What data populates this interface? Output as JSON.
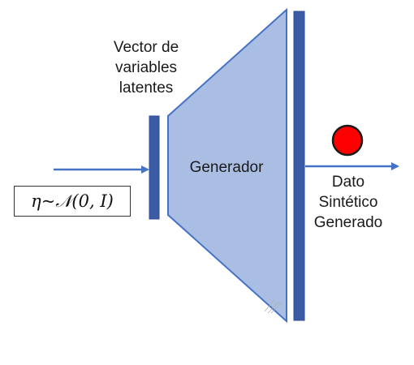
{
  "input": {
    "formula": "η~𝒩(0, I)"
  },
  "latent_vector": {
    "label_lines": [
      "Vector de",
      "variables",
      "latentes"
    ]
  },
  "generator": {
    "label": "Generador"
  },
  "output": {
    "label_lines": [
      "Dato",
      "Sintético",
      "Generado"
    ]
  },
  "colors": {
    "bar_fill": "#3b5ba5",
    "trapezoid_fill": "#aabee4",
    "arrow": "#4472c4",
    "output_dot": "#ff0000"
  }
}
